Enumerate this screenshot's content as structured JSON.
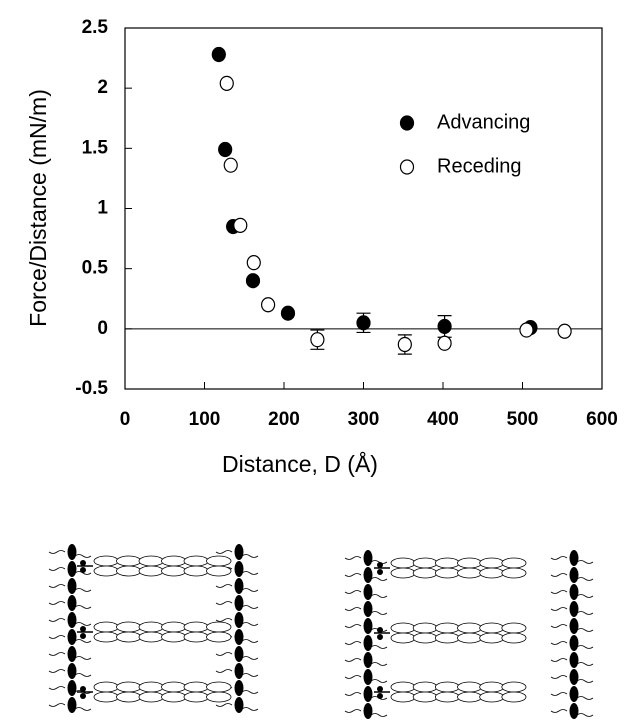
{
  "chart_data": {
    "type": "scatter",
    "xlabel": "Distance, D (Å)",
    "ylabel": "Force/Distance (mN/m)",
    "xlim": [
      0,
      600
    ],
    "xticks": [
      0,
      100,
      200,
      300,
      400,
      500,
      600
    ],
    "ylim": [
      -0.5,
      2.5
    ],
    "yticks": [
      2.5,
      2,
      1.5,
      1,
      0.5,
      0,
      -0.5
    ],
    "legend": "upper right",
    "series": [
      {
        "name": "Advancing",
        "color": "#000000",
        "filled": true,
        "x": [
          118,
          126,
          136,
          161,
          205,
          300,
          402,
          510
        ],
        "values": [
          2.28,
          1.49,
          0.85,
          0.4,
          0.13,
          0.05,
          0.02,
          0.01
        ],
        "errors": [
          null,
          null,
          null,
          null,
          null,
          0.08,
          0.09,
          null
        ]
      },
      {
        "name": "Receding",
        "color": "#000000",
        "filled": false,
        "x": [
          128,
          133,
          145,
          162,
          180,
          242,
          352,
          402,
          505,
          553
        ],
        "values": [
          2.04,
          1.36,
          0.86,
          0.55,
          0.2,
          -0.09,
          -0.13,
          -0.12,
          -0.01,
          -0.02
        ],
        "errors": [
          null,
          null,
          null,
          null,
          null,
          0.08,
          0.08,
          null,
          null,
          null
        ]
      }
    ]
  }
}
